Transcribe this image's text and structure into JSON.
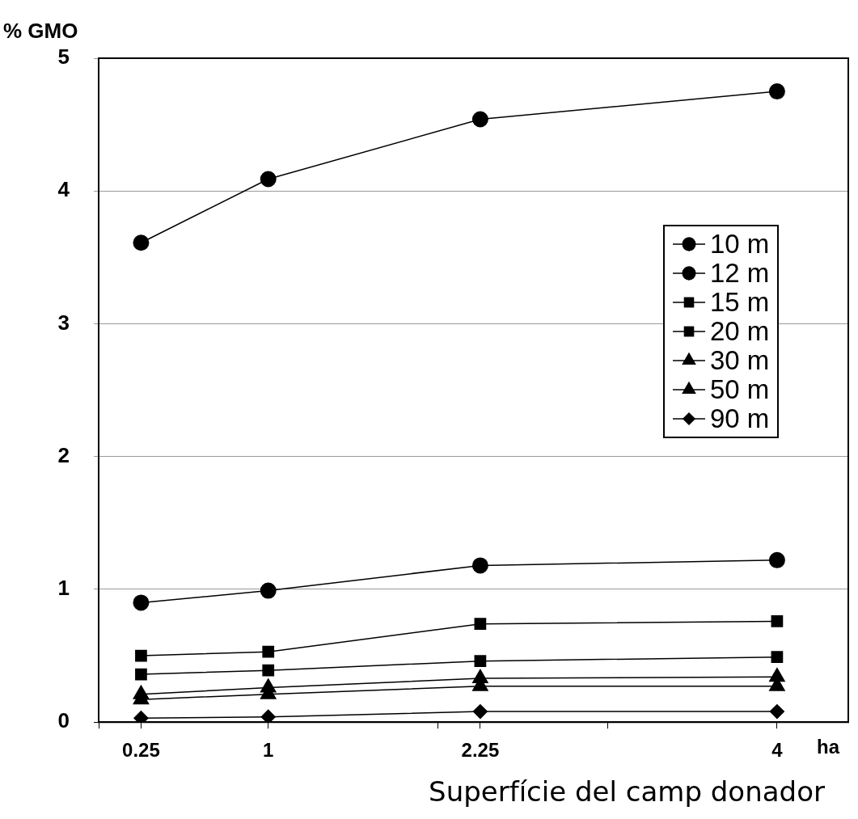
{
  "chart_data": {
    "type": "line",
    "ylabel": "% GMO",
    "xlabel": "Superfície del camp donador",
    "annotations": [
      "ha"
    ],
    "x": [
      0.25,
      1,
      2.25,
      4
    ],
    "xlim": [
      0,
      4.42
    ],
    "xticks": [
      {
        "value": 0,
        "label": null
      },
      0.25,
      1,
      {
        "value": 2,
        "label": null
      },
      2.25,
      {
        "value": 3,
        "label": null
      },
      4
    ],
    "ylim": [
      0,
      5
    ],
    "yticks": [
      0,
      1,
      2,
      3,
      4,
      5
    ],
    "grid": "y",
    "legend": "right",
    "series": [
      {
        "name": "10 m",
        "color": "#000000",
        "marker": "circle",
        "values": [
          3.61,
          4.09,
          4.54,
          4.75
        ]
      },
      {
        "name": "12 m",
        "color": "#000000",
        "marker": "circle",
        "values": [
          0.9,
          0.99,
          1.18,
          1.22
        ]
      },
      {
        "name": "15 m",
        "color": "#000000",
        "marker": "square",
        "values": [
          0.5,
          0.53,
          0.74,
          0.76
        ]
      },
      {
        "name": "20 m",
        "color": "#000000",
        "marker": "square",
        "values": [
          0.36,
          0.39,
          0.46,
          0.49
        ]
      },
      {
        "name": "30 m",
        "color": "#000000",
        "marker": "triangle",
        "values": [
          0.21,
          0.26,
          0.33,
          0.34
        ]
      },
      {
        "name": "50 m",
        "color": "#000000",
        "marker": "triangle",
        "values": [
          0.17,
          0.21,
          0.27,
          0.27
        ]
      },
      {
        "name": "90 m",
        "color": "#000000",
        "marker": "diamond",
        "values": [
          0.03,
          0.04,
          0.08,
          0.08
        ]
      }
    ]
  }
}
